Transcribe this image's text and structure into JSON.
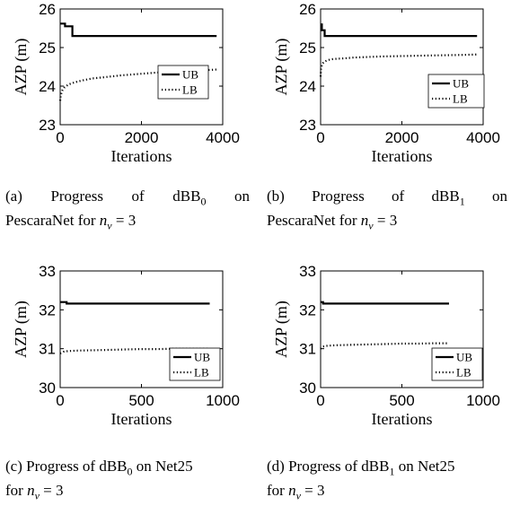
{
  "captions": [
    {
      "letter": "(a)",
      "pre": "Progress of dBB",
      "sub": "0",
      "mid": "on",
      "line2a": "PescaraNet for",
      "nv": "n",
      "nvsub": "v",
      "eq": "= 3"
    },
    {
      "letter": "(b)",
      "pre": "Progress of dBB",
      "sub": "1",
      "mid": "on",
      "line2a": "PescaraNet for",
      "nv": "n",
      "nvsub": "v",
      "eq": "= 3"
    },
    {
      "letter": "(c)",
      "pre": "Progress of dBB",
      "sub": "0",
      "mid": "on Net25",
      "line2a": "for",
      "nv": "n",
      "nvsub": "v",
      "eq": "= 3"
    },
    {
      "letter": "(d)",
      "pre": "Progress of dBB",
      "sub": "1",
      "mid": "on Net25",
      "line2a": "for",
      "nv": "n",
      "nvsub": "v",
      "eq": "= 3"
    }
  ],
  "chart_data": [
    {
      "type": "line",
      "xlabel": "Iterations",
      "ylabel": "AZP (m)",
      "xlim": [
        0,
        4000
      ],
      "ylim": [
        23,
        26
      ],
      "xticks": [
        0,
        2000,
        4000
      ],
      "yticks": [
        23,
        24,
        25,
        26
      ],
      "legend": "center-right",
      "series": [
        {
          "name": "UB",
          "style": "solid",
          "x": [
            0,
            120,
            120,
            300,
            300,
            3850
          ],
          "y": [
            25.62,
            25.62,
            25.55,
            25.55,
            25.3,
            25.3
          ]
        },
        {
          "name": "LB",
          "style": "dotted",
          "x": [
            0,
            10,
            30,
            60,
            100,
            150,
            200,
            300,
            400,
            600,
            800,
            1000,
            1500,
            2000,
            2500,
            3000,
            3500,
            3850
          ],
          "y": [
            23.62,
            23.72,
            23.82,
            23.9,
            23.96,
            24.0,
            24.04,
            24.08,
            24.11,
            24.16,
            24.2,
            24.22,
            24.28,
            24.32,
            24.36,
            24.39,
            24.41,
            24.43
          ]
        }
      ]
    },
    {
      "type": "line",
      "xlabel": "Iterations",
      "ylabel": "AZP (m)",
      "xlim": [
        0,
        4000
      ],
      "ylim": [
        23,
        26
      ],
      "xticks": [
        0,
        2000,
        4000
      ],
      "yticks": [
        23,
        24,
        25,
        26
      ],
      "legend": "center-right",
      "series": [
        {
          "name": "UB",
          "style": "solid",
          "x": [
            0,
            30,
            30,
            100,
            100,
            3850
          ],
          "y": [
            25.6,
            25.6,
            25.45,
            25.45,
            25.3,
            25.3
          ]
        },
        {
          "name": "LB",
          "style": "dotted",
          "x": [
            0,
            10,
            30,
            60,
            100,
            150,
            200,
            300,
            400,
            600,
            800,
            1000,
            1500,
            2000,
            2500,
            3000,
            3500,
            3850
          ],
          "y": [
            24.25,
            24.45,
            24.55,
            24.6,
            24.64,
            24.66,
            24.68,
            24.7,
            24.71,
            24.72,
            24.74,
            24.75,
            24.77,
            24.78,
            24.79,
            24.8,
            24.81,
            24.82
          ]
        }
      ]
    },
    {
      "type": "line",
      "xlabel": "Iterations",
      "ylabel": "AZP (m)",
      "xlim": [
        0,
        1000
      ],
      "ylim": [
        30,
        33
      ],
      "xticks": [
        0,
        500,
        1000
      ],
      "yticks": [
        30,
        31,
        32,
        33
      ],
      "legend": "bottom-right",
      "series": [
        {
          "name": "UB",
          "style": "solid",
          "x": [
            0,
            40,
            40,
            920
          ],
          "y": [
            32.2,
            32.2,
            32.16,
            32.16
          ]
        },
        {
          "name": "LB",
          "style": "dotted",
          "x": [
            0,
            20,
            50,
            100,
            200,
            300,
            400,
            500,
            600,
            700,
            800,
            920
          ],
          "y": [
            30.88,
            30.92,
            30.94,
            30.95,
            30.96,
            30.97,
            30.98,
            30.99,
            30.99,
            31.0,
            31.0,
            31.0
          ]
        }
      ]
    },
    {
      "type": "line",
      "xlabel": "Iterations",
      "ylabel": "AZP (m)",
      "xlim": [
        0,
        1000
      ],
      "ylim": [
        30,
        33
      ],
      "xticks": [
        0,
        500,
        1000
      ],
      "yticks": [
        30,
        31,
        32,
        33
      ],
      "legend": "bottom-right",
      "series": [
        {
          "name": "UB",
          "style": "solid",
          "x": [
            0,
            15,
            15,
            790
          ],
          "y": [
            32.2,
            32.2,
            32.16,
            32.16
          ]
        },
        {
          "name": "LB",
          "style": "dotted",
          "x": [
            0,
            10,
            30,
            60,
            100,
            200,
            300,
            400,
            500,
            600,
            700,
            790
          ],
          "y": [
            31.0,
            31.05,
            31.07,
            31.08,
            31.09,
            31.1,
            31.11,
            31.12,
            31.13,
            31.13,
            31.14,
            31.14
          ]
        }
      ]
    }
  ]
}
